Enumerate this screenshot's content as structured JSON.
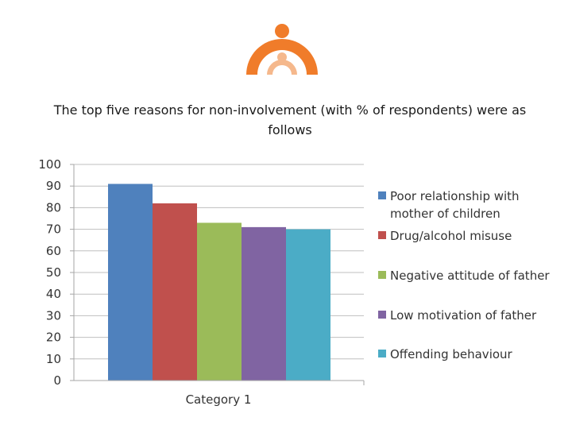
{
  "heading": "The top five reasons for non-involvement (with % of respondents) were as follows",
  "logo": {
    "icon": "family-arc-logo-icon",
    "colors": {
      "primary": "#F07C2A",
      "light": "#F5B88C"
    }
  },
  "chart_data": {
    "type": "bar",
    "title": "",
    "xlabel": "",
    "ylabel": "",
    "categories": [
      "Category 1"
    ],
    "series": [
      {
        "name": "Poor relationship with mother of children",
        "values": [
          91
        ],
        "color": "#4F81BD"
      },
      {
        "name": "Drug/alcohol misuse",
        "values": [
          82
        ],
        "color": "#C0504D"
      },
      {
        "name": "Negative attitude of father",
        "values": [
          73
        ],
        "color": "#9BBB59"
      },
      {
        "name": "Low motivation of father",
        "values": [
          71
        ],
        "color": "#8064A2"
      },
      {
        "name": "Offending behaviour",
        "values": [
          70
        ],
        "color": "#4BACC6"
      }
    ],
    "ylim": [
      0,
      100
    ],
    "yticks": [
      "0",
      "10",
      "20",
      "30",
      "40",
      "50",
      "60",
      "70",
      "80",
      "90",
      "100"
    ],
    "grid": true,
    "legend_position": "right"
  }
}
